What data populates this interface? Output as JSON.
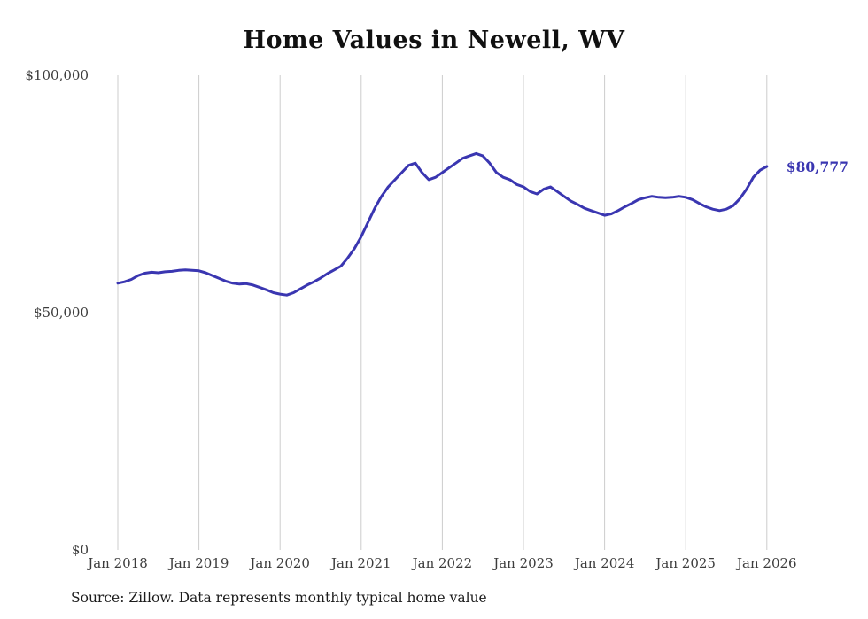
{
  "page": {
    "background_color": "#ffffff"
  },
  "footer": {
    "source": "Source: Zillow. Data represents monthly typical home value"
  },
  "chart_data": {
    "type": "line",
    "title": "Home Values in Newell, WV",
    "xlabel": "",
    "ylabel": "",
    "grid": "vertical-only",
    "legend_position": "none",
    "line_color": "#3a36b1",
    "end_label": "$80,777",
    "end_value": 80777,
    "ylim": [
      0,
      100000
    ],
    "y_ticks": [
      0,
      50000,
      100000
    ],
    "y_tick_labels": [
      "$0",
      "$50,000",
      "$100,000"
    ],
    "x_tick_labels": [
      "Jan 2018",
      "Jan 2019",
      "Jan 2020",
      "Jan 2021",
      "Jan 2022",
      "Jan 2023",
      "Jan 2024",
      "Jan 2025",
      "Jan 2026"
    ],
    "x_start_month": "2018-01",
    "x_end_month": "2026-01",
    "series": [
      {
        "name": "Typical home value (monthly)",
        "values": [
          56200,
          56500,
          57000,
          57800,
          58300,
          58500,
          58400,
          58600,
          58700,
          58900,
          59000,
          58900,
          58800,
          58400,
          57800,
          57200,
          56600,
          56200,
          56000,
          56100,
          55800,
          55300,
          54800,
          54200,
          53900,
          53700,
          54200,
          55000,
          55800,
          56500,
          57300,
          58200,
          59000,
          59800,
          61500,
          63500,
          66000,
          69000,
          72000,
          74500,
          76500,
          78000,
          79500,
          81000,
          81500,
          79500,
          78000,
          78500,
          79500,
          80500,
          81500,
          82500,
          83000,
          83500,
          83000,
          81500,
          79500,
          78500,
          78000,
          77000,
          76500,
          75500,
          75000,
          76000,
          76500,
          75500,
          74500,
          73500,
          72800,
          72000,
          71500,
          71000,
          70500,
          70800,
          71500,
          72300,
          73000,
          73800,
          74200,
          74500,
          74300,
          74200,
          74300,
          74500,
          74300,
          73800,
          73000,
          72300,
          71800,
          71500,
          71800,
          72500,
          74000,
          76000,
          78500,
          80000,
          80777
        ]
      }
    ]
  }
}
